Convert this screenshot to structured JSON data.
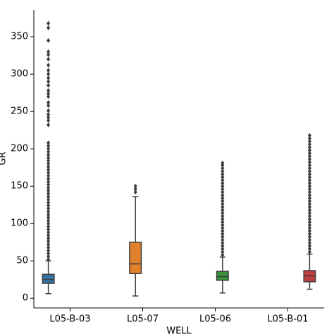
{
  "chart_data": {
    "type": "box",
    "xlabel": "WELL",
    "ylabel": "GR",
    "categories": [
      "L05-B-03",
      "L05-07",
      "L05-06",
      "L05-B-01"
    ],
    "ylim": [
      -13,
      386
    ],
    "yticks": [
      0,
      50,
      100,
      150,
      200,
      250,
      300,
      350
    ],
    "boxes": [
      {
        "color": "#3274a1",
        "whislo": 6,
        "q1": 20,
        "med": 25,
        "q3": 32,
        "whishi": 50,
        "fliers": [
          52,
          56,
          60,
          64,
          68,
          72,
          76,
          80,
          84,
          88,
          92,
          96,
          100,
          104,
          108,
          112,
          116,
          120,
          124,
          128,
          132,
          136,
          140,
          144,
          148,
          152,
          156,
          160,
          164,
          168,
          172,
          176,
          180,
          184,
          188,
          192,
          196,
          200,
          204,
          208,
          232,
          238,
          242,
          246,
          251,
          258,
          262,
          270,
          274,
          278,
          285,
          290,
          295,
          300,
          305,
          312,
          320,
          326,
          330,
          345,
          362,
          368
        ]
      },
      {
        "color": "#e1812c",
        "whislo": 3,
        "q1": 33,
        "med": 46,
        "q3": 75,
        "whishi": 136,
        "fliers": [
          142,
          146,
          150
        ]
      },
      {
        "color": "#3a923a",
        "whislo": 7,
        "q1": 24,
        "med": 29,
        "q3": 36,
        "whishi": 55,
        "fliers": [
          58,
          62,
          66,
          70,
          74,
          78,
          82,
          86,
          90,
          94,
          98,
          102,
          106,
          110,
          114,
          118,
          122,
          126,
          130,
          134,
          138,
          142,
          146,
          150,
          154,
          158,
          162,
          166,
          170,
          174,
          178,
          181
        ]
      },
      {
        "color": "#c03d3e",
        "whislo": 12,
        "q1": 22,
        "med": 30,
        "q3": 37,
        "whishi": 59,
        "fliers": [
          62,
          66,
          70,
          74,
          78,
          82,
          86,
          90,
          94,
          98,
          102,
          106,
          110,
          114,
          118,
          122,
          126,
          130,
          134,
          138,
          142,
          146,
          150,
          154,
          158,
          162,
          166,
          170,
          174,
          178,
          182,
          186,
          190,
          194,
          198,
          202,
          206,
          210,
          214,
          218
        ]
      }
    ]
  }
}
